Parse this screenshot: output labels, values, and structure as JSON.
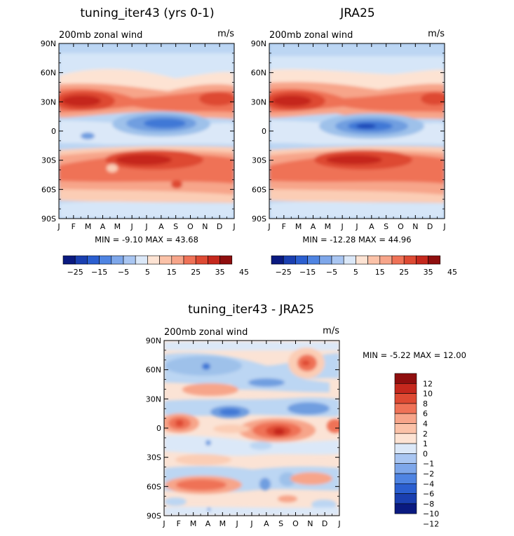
{
  "chart_data": [
    {
      "type": "heatmap",
      "title": "tuning_iter43 (yrs 0-1)",
      "subtitle": "200mb zonal wind",
      "units": "m/s",
      "x_ticks": [
        "J",
        "F",
        "M",
        "A",
        "M",
        "J",
        "J",
        "A",
        "S",
        "O",
        "N",
        "D",
        "J"
      ],
      "y_ticks": [
        "90N",
        "60N",
        "30N",
        "0",
        "30S",
        "60S",
        "90S"
      ],
      "y_range": [
        -90,
        90
      ],
      "stats": "MIN =  -9.10 MAX =  43.68",
      "min": -9.1,
      "max": 43.68,
      "features": [
        {
          "name": "northern subtropical jet",
          "lat": 30,
          "peak": 40
        },
        {
          "name": "southern subtropical jet",
          "lat": -30,
          "peak": 43
        },
        {
          "name": "equatorial easterlies",
          "lat": 5,
          "min": -9
        }
      ],
      "colorbar": {
        "levels": [
          -25,
          -20,
          -15,
          -10,
          -5,
          0,
          5,
          10,
          15,
          20,
          25,
          30,
          35,
          40,
          45
        ],
        "labels": [
          "-25",
          "-15",
          "-5",
          "5",
          "15",
          "25",
          "35",
          "45"
        ]
      }
    },
    {
      "type": "heatmap",
      "title": "JRA25",
      "subtitle": "200mb zonal wind",
      "units": "m/s",
      "x_ticks": [
        "J",
        "F",
        "M",
        "A",
        "M",
        "J",
        "J",
        "A",
        "S",
        "O",
        "N",
        "D",
        "J"
      ],
      "y_ticks": [
        "90N",
        "60N",
        "30N",
        "0",
        "30S",
        "60S",
        "90S"
      ],
      "y_range": [
        -90,
        90
      ],
      "stats": "MIN =  -12.28 MAX =  44.96",
      "min": -12.28,
      "max": 44.96,
      "features": [
        {
          "name": "northern subtropical jet",
          "lat": 30,
          "peak": 42
        },
        {
          "name": "southern subtropical jet",
          "lat": -30,
          "peak": 44
        },
        {
          "name": "equatorial easterlies",
          "lat": 5,
          "min": -12
        }
      ],
      "colorbar": {
        "levels": [
          -25,
          -20,
          -15,
          -10,
          -5,
          0,
          5,
          10,
          15,
          20,
          25,
          30,
          35,
          40,
          45
        ],
        "labels": [
          "-25",
          "-15",
          "-5",
          "5",
          "15",
          "25",
          "35",
          "45"
        ]
      }
    },
    {
      "type": "heatmap",
      "title": "tuning_iter43 - JRA25",
      "subtitle": "200mb zonal wind",
      "units": "m/s",
      "x_ticks": [
        "J",
        "F",
        "M",
        "A",
        "M",
        "J",
        "J",
        "A",
        "S",
        "O",
        "N",
        "D",
        "J"
      ],
      "y_ticks": [
        "90N",
        "60N",
        "30N",
        "0",
        "30S",
        "60S",
        "90S"
      ],
      "y_range": [
        -90,
        90
      ],
      "stats": "MIN =  -5.22 MAX =  12.00",
      "min": -5.22,
      "max": 12.0,
      "colorbar": {
        "levels": [
          -12,
          -10,
          -8,
          -6,
          -4,
          -2,
          -1,
          0,
          1,
          2,
          4,
          6,
          8,
          10,
          12
        ],
        "labels": [
          "12",
          "10",
          "8",
          "6",
          "4",
          "2",
          "1",
          "0",
          "-1",
          "-2",
          "-4",
          "-6",
          "-8",
          "-10",
          "-12"
        ]
      }
    }
  ]
}
